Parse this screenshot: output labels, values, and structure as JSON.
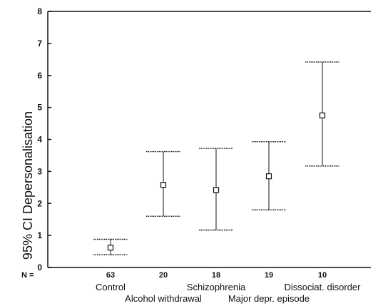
{
  "chart_data": {
    "type": "errorbar",
    "ylabel": "95% CI Depersonalisation",
    "ylim": [
      0,
      8
    ],
    "y_ticks": [
      "0",
      "1",
      "2",
      "3",
      "4",
      "5",
      "6",
      "7",
      "8"
    ],
    "n_label": "N =",
    "groups": [
      {
        "category": "Control",
        "n": "63",
        "mean": 0.62,
        "lower": 0.4,
        "upper": 0.88
      },
      {
        "category": "Alcohol withdrawal",
        "n": "20",
        "mean": 2.58,
        "lower": 1.6,
        "upper": 3.62
      },
      {
        "category": "Schizophrenia",
        "n": "18",
        "mean": 2.42,
        "lower": 1.17,
        "upper": 3.72
      },
      {
        "category": "Major depr. episode",
        "n": "19",
        "mean": 2.85,
        "lower": 1.8,
        "upper": 3.93
      },
      {
        "category": "Dissociat. disorder",
        "n": "10",
        "mean": 4.75,
        "lower": 3.17,
        "upper": 6.42
      }
    ],
    "grid": false,
    "colors": {
      "ink": "#111111",
      "background": "#ffffff"
    }
  }
}
